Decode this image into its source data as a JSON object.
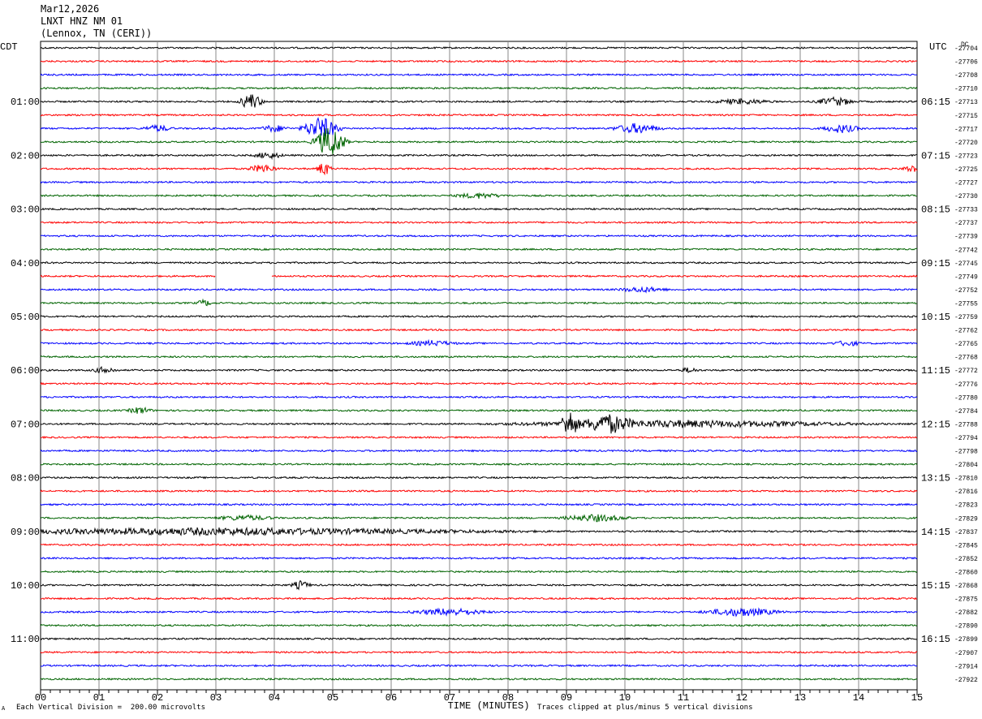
{
  "header": {
    "date": "Mar12,2026",
    "station": "LNXT HNZ NM 01",
    "location": "(Lennox, TN (CERI))"
  },
  "chart_data": {
    "type": "line",
    "title": "LNXT HNZ NM 01",
    "xlabel": "TIME (MINUTES)",
    "xlim": [
      0,
      15
    ],
    "x_ticks": [
      "00",
      "01",
      "02",
      "03",
      "04",
      "05",
      "06",
      "07",
      "08",
      "09",
      "10",
      "11",
      "12",
      "13",
      "14",
      "15"
    ],
    "left_axis_label": "CDT",
    "right_axis_label": "UTC",
    "right_axis_extra": "DC",
    "trace_colors": [
      "#000000",
      "#ff0000",
      "#0000ff",
      "#006400"
    ],
    "left_hour_labels": [
      "01:00",
      "02:00",
      "03:00",
      "04:00",
      "05:00",
      "06:00",
      "07:00",
      "08:00",
      "09:00",
      "10:00",
      "11:00"
    ],
    "right_hour_labels": [
      "06:15",
      "07:15",
      "08:15",
      "09:15",
      "10:15",
      "11:15",
      "12:15",
      "13:15",
      "14:15",
      "15:15",
      "16:15"
    ],
    "dc_offsets": [
      "-27704",
      "-27706",
      "-27708",
      "-27710",
      "-27713",
      "-27715",
      "-27717",
      "-27720",
      "-27723",
      "-27725",
      "-27727",
      "-27730",
      "-27733",
      "-27737",
      "-27739",
      "-27742",
      "-27745",
      "-27749",
      "-27752",
      "-27755",
      "-27759",
      "-27762",
      "-27765",
      "-27768",
      "-27772",
      "-27776",
      "-27780",
      "-27784",
      "-27788",
      "-27794",
      "-27798",
      "-27804",
      "-27810",
      "-27816",
      "-27823",
      "-27829",
      "-27837",
      "-27845",
      "-27852",
      "-27860",
      "-27868",
      "-27875",
      "-27882",
      "-27890",
      "-27899",
      "-27907",
      "-27914",
      "-27922"
    ],
    "events": [
      {
        "row": 4,
        "minute": 3.6,
        "amp": 10,
        "dur": 0.25
      },
      {
        "row": 4,
        "minute": 13.6,
        "amp": 5,
        "dur": 0.4
      },
      {
        "row": 4,
        "minute": 12.0,
        "amp": 3,
        "dur": 0.6
      },
      {
        "row": 6,
        "minute": 4.8,
        "amp": 14,
        "dur": 0.4
      },
      {
        "row": 6,
        "minute": 10.2,
        "amp": 6,
        "dur": 0.5
      },
      {
        "row": 6,
        "minute": 13.7,
        "amp": 5,
        "dur": 0.4
      },
      {
        "row": 6,
        "minute": 4.0,
        "amp": 4,
        "dur": 0.3
      },
      {
        "row": 6,
        "minute": 2.0,
        "amp": 4,
        "dur": 0.3
      },
      {
        "row": 7,
        "minute": 4.95,
        "amp": 20,
        "dur": 0.35
      },
      {
        "row": 8,
        "minute": 3.9,
        "amp": 4,
        "dur": 0.3
      },
      {
        "row": 9,
        "minute": 3.8,
        "amp": 5,
        "dur": 0.3
      },
      {
        "row": 9,
        "minute": 4.85,
        "amp": 9,
        "dur": 0.15
      },
      {
        "row": 9,
        "minute": 14.9,
        "amp": 4,
        "dur": 0.2
      },
      {
        "row": 11,
        "minute": 7.5,
        "amp": 3,
        "dur": 0.5
      },
      {
        "row": 18,
        "minute": 10.3,
        "amp": 3,
        "dur": 0.5
      },
      {
        "row": 19,
        "minute": 2.8,
        "amp": 4,
        "dur": 0.15
      },
      {
        "row": 22,
        "minute": 6.7,
        "amp": 3,
        "dur": 0.5
      },
      {
        "row": 22,
        "minute": 13.8,
        "amp": 3,
        "dur": 0.3
      },
      {
        "row": 24,
        "minute": 1.1,
        "amp": 4,
        "dur": 0.25
      },
      {
        "row": 24,
        "minute": 11.1,
        "amp": 3,
        "dur": 0.2
      },
      {
        "row": 27,
        "minute": 1.7,
        "amp": 4,
        "dur": 0.25
      },
      {
        "row": 28,
        "minute": 9.05,
        "amp": 16,
        "dur": 0.2
      },
      {
        "row": 28,
        "minute": 9.7,
        "amp": 10,
        "dur": 0.5
      },
      {
        "row": 28,
        "minute": 11.0,
        "amp": 4,
        "dur": 3.6
      },
      {
        "row": 35,
        "minute": 3.5,
        "amp": 3,
        "dur": 0.6
      },
      {
        "row": 35,
        "minute": 9.5,
        "amp": 4,
        "dur": 0.7
      },
      {
        "row": 36,
        "minute": 3.0,
        "amp": 4,
        "dur": 6.0
      },
      {
        "row": 40,
        "minute": 4.45,
        "amp": 5,
        "dur": 0.2
      },
      {
        "row": 42,
        "minute": 7.0,
        "amp": 4,
        "dur": 0.8
      },
      {
        "row": 42,
        "minute": 12.0,
        "amp": 5,
        "dur": 0.8
      }
    ],
    "gaps": [
      {
        "row": 17,
        "start": 3.0,
        "end": 3.95
      }
    ]
  },
  "footer": {
    "scale_note": "Each Vertical Division =  200.00 microvolts",
    "clip_note": "Traces clipped at plus/minus 5 vertical divisions",
    "corner_mark": "A"
  }
}
